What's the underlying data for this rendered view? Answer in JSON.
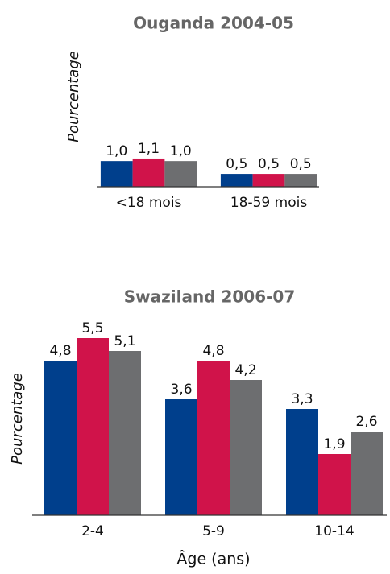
{
  "chart_data": [
    {
      "type": "bar",
      "title": "Ouganda 2004-05",
      "y_label": "Pourcentage",
      "categories": [
        "<18 mois",
        "18-59 mois"
      ],
      "series": [
        {
          "color": "#003f8c",
          "values": [
            1.0,
            0.5
          ],
          "value_labels": [
            "1,0",
            "0,5"
          ]
        },
        {
          "color": "#d0134a",
          "values": [
            1.1,
            0.5
          ],
          "value_labels": [
            "1,1",
            "0,5"
          ]
        },
        {
          "color": "#6d6e70",
          "values": [
            1.0,
            0.5
          ],
          "value_labels": [
            "1,0",
            "0,5"
          ]
        }
      ],
      "ylim": [
        0,
        5.4
      ]
    },
    {
      "type": "bar",
      "title": "Swaziland 2006-07",
      "y_label": "Pourcentage",
      "x_label": "Âge (ans)",
      "categories": [
        "2-4",
        "5-9",
        "10-14"
      ],
      "series": [
        {
          "color": "#003f8c",
          "values": [
            4.8,
            3.6,
            3.3
          ],
          "value_labels": [
            "4,8",
            "3,6",
            "3,3"
          ]
        },
        {
          "color": "#d0134a",
          "values": [
            5.5,
            4.8,
            1.9
          ],
          "value_labels": [
            "5,5",
            "4,8",
            "1,9"
          ]
        },
        {
          "color": "#6d6e70",
          "values": [
            5.1,
            4.2,
            2.6
          ],
          "value_labels": [
            "5,1",
            "4,2",
            "2,6"
          ]
        }
      ],
      "ylim": [
        0,
        6
      ]
    }
  ]
}
